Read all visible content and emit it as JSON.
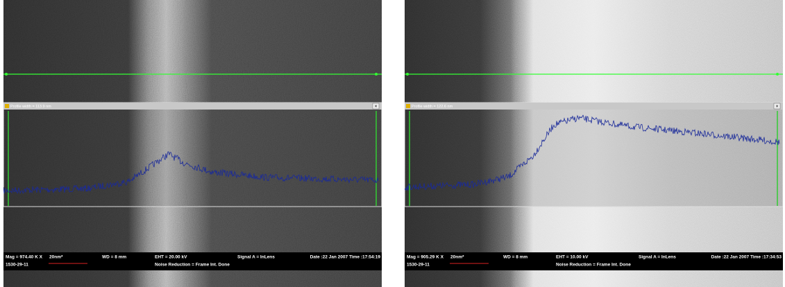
{
  "panels": [
    {
      "profile_title": "Profile width = 113.9 nm",
      "status": {
        "mag": "Mag = 974.40 K X",
        "scale": "20nm*",
        "wd": "WD =   8 mm",
        "eht": "EHT = 20.00 kV",
        "signal": "Signal A = InLens",
        "datetime": "Date :22 Jan 2007  Time :17:54:19",
        "id": "1530-29-11",
        "noise": "Noise Reduction = Frame Int. Done"
      }
    },
    {
      "profile_title": "Profile width = 122.6 nm",
      "status": {
        "mag": "Mag = 905.29 K X",
        "scale": "20nm*",
        "wd": "WD =   8 mm",
        "eht": "EHT = 10.00 kV",
        "signal": "Signal A = InLens",
        "datetime": "Date :22 Jan 2007  Time :17:34:53",
        "id": "1530-29-11",
        "noise": "Noise Reduction = Frame Int. Done"
      }
    }
  ]
}
